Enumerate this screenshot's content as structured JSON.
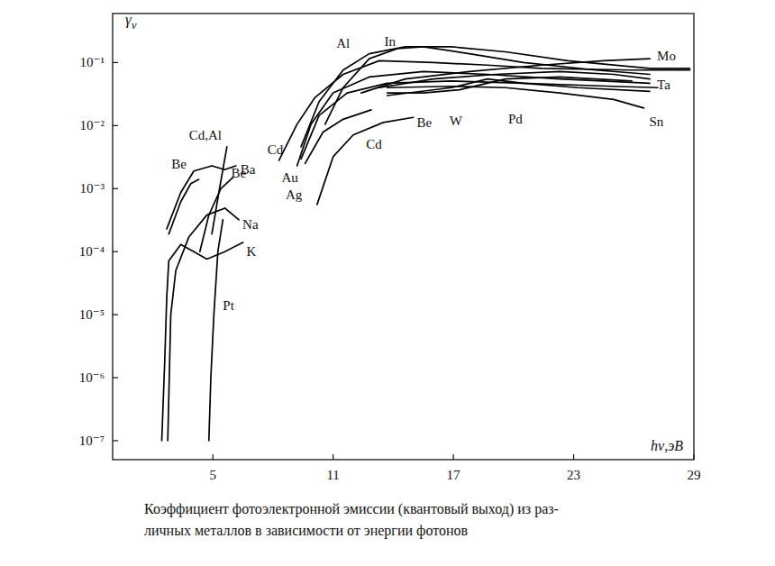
{
  "chart_data": {
    "type": "line",
    "title": "Коэффициент фотоэлектронной эмиссии (квантовый выход) из раз-",
    "subtitle": "личных металлов в зависимости от энергии фотонов",
    "x_label": "hν,эВ",
    "y_label": "γν",
    "log": "y",
    "grid": false,
    "xlim": [
      0,
      29
    ],
    "ylim": [
      5e-08,
      0.6
    ],
    "xticks": [
      5,
      11,
      17,
      23,
      29
    ],
    "yticks": [
      {
        "value": 1e-07,
        "label": "10⁻⁷"
      },
      {
        "value": 1e-06,
        "label": "10⁻⁶"
      },
      {
        "value": 1e-05,
        "label": "10⁻⁵"
      },
      {
        "value": 0.0001,
        "label": "10⁻⁴"
      },
      {
        "value": 0.001,
        "label": "10⁻³"
      },
      {
        "value": 0.01,
        "label": "10⁻²"
      },
      {
        "value": 0.1,
        "label": "10⁻¹"
      }
    ],
    "series": [
      {
        "name": "Be",
        "color": "#000000",
        "x": [
          2.8,
          3.4,
          3.9,
          4.3
        ],
        "values": [
          0.00019,
          0.00062,
          0.0012,
          0.0014
        ]
      },
      {
        "name": "Cd,Al",
        "color": "#000000",
        "x": [
          4.95,
          5.3,
          5.7
        ],
        "values": [
          0.00019,
          0.00087,
          0.0046
        ]
      },
      {
        "name": "Ba",
        "color": "#000000",
        "x": [
          2.7,
          3.4,
          4.05,
          4.95,
          5.6,
          6.15
        ],
        "values": [
          0.00023,
          0.00087,
          0.0019,
          0.0023,
          0.002,
          0.0023
        ]
      },
      {
        "name": "Be",
        "color": "#000000",
        "x": [
          4.35,
          4.8,
          5.4,
          6.0
        ],
        "values": [
          0.0001,
          0.00038,
          0.001,
          0.0015
        ]
      },
      {
        "name": "Na",
        "color": "#000000",
        "x": [
          2.75,
          2.9,
          3.15,
          3.8,
          4.7,
          5.6,
          6.3
        ],
        "values": [
          1e-07,
          1e-05,
          5e-05,
          0.00017,
          0.00038,
          0.00049,
          0.00032
        ]
      },
      {
        "name": "K",
        "color": "#000000",
        "x": [
          2.45,
          2.6,
          2.7,
          2.8,
          3.4,
          4.05,
          4.7,
          5.6,
          6.5
        ],
        "values": [
          1e-07,
          1.9e-06,
          1.9e-05,
          7.1e-05,
          0.00013,
          0.0001,
          7.6e-05,
          0.0001,
          0.00014
        ]
      },
      {
        "name": "Pt",
        "color": "#000000",
        "x": [
          4.8,
          4.9,
          5.05,
          5.25,
          5.5
        ],
        "values": [
          1e-07,
          1e-06,
          1e-05,
          0.0001,
          0.00032
        ]
      },
      {
        "name": "Cd",
        "color": "#000000",
        "x": [
          8.3,
          9.2,
          10.1,
          11.5,
          13.3,
          16,
          18.7,
          21.4,
          25.9,
          28.8
        ],
        "values": [
          0.0028,
          0.0105,
          0.028,
          0.065,
          0.107,
          0.1,
          0.091,
          0.081,
          0.076,
          0.076
        ]
      },
      {
        "name": "Au",
        "color": "#000000",
        "x": [
          9.2,
          9.9,
          11,
          12.8,
          15.5,
          18.7,
          22.3,
          26.8
        ],
        "values": [
          0.0023,
          0.0105,
          0.033,
          0.059,
          0.072,
          0.065,
          0.055,
          0.047
        ]
      },
      {
        "name": "Ag",
        "color": "#000000",
        "x": [
          9.4,
          10.3,
          11.7,
          13.7,
          16.9,
          20.5,
          24.9,
          27.2
        ],
        "values": [
          0.00295,
          0.0145,
          0.033,
          0.047,
          0.051,
          0.047,
          0.042,
          0.04
        ]
      },
      {
        "name": "Al",
        "color": "#000000",
        "x": [
          9.4,
          10.3,
          11.5,
          12.8,
          14.6,
          16.9,
          19.6,
          22.7,
          26.8,
          28.8
        ],
        "values": [
          0.0046,
          0.024,
          0.076,
          0.138,
          0.178,
          0.178,
          0.148,
          0.107,
          0.081,
          0.081
        ]
      },
      {
        "name": "In",
        "color": "#000000",
        "x": [
          10.6,
          11.5,
          12.8,
          14.2,
          15.5,
          17.8,
          20.5,
          24.1,
          26.8
        ],
        "values": [
          0.0105,
          0.04,
          0.115,
          0.166,
          0.178,
          0.138,
          0.1,
          0.076,
          0.065
        ]
      },
      {
        "name": "Be",
        "color": "#000000",
        "x": [
          10.2,
          11.0,
          12.0,
          13.5,
          15.0
        ],
        "values": [
          0.00056,
          0.0032,
          0.0071,
          0.0112,
          0.0135
        ]
      },
      {
        "name": "Cd",
        "color": "#000000",
        "x": [
          9.6,
          10.5,
          11.5,
          12.9
        ],
        "values": [
          0.0025,
          0.0079,
          0.0126,
          0.0178
        ]
      },
      {
        "name": "W",
        "color": "#000000",
        "x": [
          13.7,
          15.5,
          17.3,
          19.6,
          22.3,
          25.9
        ],
        "values": [
          0.033,
          0.033,
          0.037,
          0.055,
          0.059,
          0.051
        ]
      },
      {
        "name": "Pd",
        "color": "#000000",
        "x": [
          13.7,
          16.9,
          18.7,
          20.5,
          23.2,
          26.8
        ],
        "values": [
          0.03,
          0.04,
          0.055,
          0.047,
          0.04,
          0.035
        ]
      },
      {
        "name": "Sn",
        "color": "#000000",
        "x": [
          13.7,
          16.9,
          19.6,
          22.3,
          25,
          26.5
        ],
        "values": [
          0.04,
          0.042,
          0.04,
          0.033,
          0.026,
          0.019
        ]
      },
      {
        "name": "Mo",
        "color": "#000000",
        "x": [
          12.4,
          14.6,
          17.8,
          21.4,
          24.5,
          26.8
        ],
        "values": [
          0.033,
          0.055,
          0.072,
          0.091,
          0.107,
          0.115
        ]
      },
      {
        "name": "Ta",
        "color": "#000000",
        "x": [
          13.3,
          16,
          19.1,
          22.3,
          25,
          26.8
        ],
        "values": [
          0.04,
          0.055,
          0.065,
          0.072,
          0.065,
          0.055
        ]
      }
    ]
  }
}
